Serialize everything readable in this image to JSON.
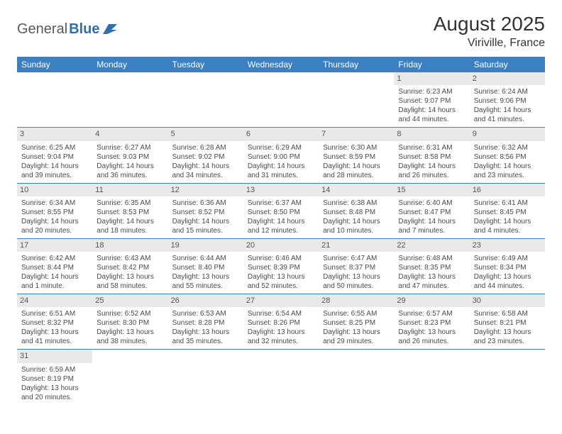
{
  "brand": {
    "part1": "General",
    "part2": "Blue"
  },
  "title": {
    "month": "August 2025",
    "location": "Viriville, France"
  },
  "colors": {
    "header_bg": "#3a80c3",
    "header_text": "#ffffff",
    "daynum_bg": "#e9e9e9",
    "border": "#3a80c3",
    "text": "#4a4a4a"
  },
  "weekdays": [
    "Sunday",
    "Monday",
    "Tuesday",
    "Wednesday",
    "Thursday",
    "Friday",
    "Saturday"
  ],
  "weeks": [
    [
      {
        "n": "",
        "sr": "",
        "ss": "",
        "dl": ""
      },
      {
        "n": "",
        "sr": "",
        "ss": "",
        "dl": ""
      },
      {
        "n": "",
        "sr": "",
        "ss": "",
        "dl": ""
      },
      {
        "n": "",
        "sr": "",
        "ss": "",
        "dl": ""
      },
      {
        "n": "",
        "sr": "",
        "ss": "",
        "dl": ""
      },
      {
        "n": "1",
        "sr": "Sunrise: 6:23 AM",
        "ss": "Sunset: 9:07 PM",
        "dl": "Daylight: 14 hours and 44 minutes."
      },
      {
        "n": "2",
        "sr": "Sunrise: 6:24 AM",
        "ss": "Sunset: 9:06 PM",
        "dl": "Daylight: 14 hours and 41 minutes."
      }
    ],
    [
      {
        "n": "3",
        "sr": "Sunrise: 6:25 AM",
        "ss": "Sunset: 9:04 PM",
        "dl": "Daylight: 14 hours and 39 minutes."
      },
      {
        "n": "4",
        "sr": "Sunrise: 6:27 AM",
        "ss": "Sunset: 9:03 PM",
        "dl": "Daylight: 14 hours and 36 minutes."
      },
      {
        "n": "5",
        "sr": "Sunrise: 6:28 AM",
        "ss": "Sunset: 9:02 PM",
        "dl": "Daylight: 14 hours and 34 minutes."
      },
      {
        "n": "6",
        "sr": "Sunrise: 6:29 AM",
        "ss": "Sunset: 9:00 PM",
        "dl": "Daylight: 14 hours and 31 minutes."
      },
      {
        "n": "7",
        "sr": "Sunrise: 6:30 AM",
        "ss": "Sunset: 8:59 PM",
        "dl": "Daylight: 14 hours and 28 minutes."
      },
      {
        "n": "8",
        "sr": "Sunrise: 6:31 AM",
        "ss": "Sunset: 8:58 PM",
        "dl": "Daylight: 14 hours and 26 minutes."
      },
      {
        "n": "9",
        "sr": "Sunrise: 6:32 AM",
        "ss": "Sunset: 8:56 PM",
        "dl": "Daylight: 14 hours and 23 minutes."
      }
    ],
    [
      {
        "n": "10",
        "sr": "Sunrise: 6:34 AM",
        "ss": "Sunset: 8:55 PM",
        "dl": "Daylight: 14 hours and 20 minutes."
      },
      {
        "n": "11",
        "sr": "Sunrise: 6:35 AM",
        "ss": "Sunset: 8:53 PM",
        "dl": "Daylight: 14 hours and 18 minutes."
      },
      {
        "n": "12",
        "sr": "Sunrise: 6:36 AM",
        "ss": "Sunset: 8:52 PM",
        "dl": "Daylight: 14 hours and 15 minutes."
      },
      {
        "n": "13",
        "sr": "Sunrise: 6:37 AM",
        "ss": "Sunset: 8:50 PM",
        "dl": "Daylight: 14 hours and 12 minutes."
      },
      {
        "n": "14",
        "sr": "Sunrise: 6:38 AM",
        "ss": "Sunset: 8:48 PM",
        "dl": "Daylight: 14 hours and 10 minutes."
      },
      {
        "n": "15",
        "sr": "Sunrise: 6:40 AM",
        "ss": "Sunset: 8:47 PM",
        "dl": "Daylight: 14 hours and 7 minutes."
      },
      {
        "n": "16",
        "sr": "Sunrise: 6:41 AM",
        "ss": "Sunset: 8:45 PM",
        "dl": "Daylight: 14 hours and 4 minutes."
      }
    ],
    [
      {
        "n": "17",
        "sr": "Sunrise: 6:42 AM",
        "ss": "Sunset: 8:44 PM",
        "dl": "Daylight: 14 hours and 1 minute."
      },
      {
        "n": "18",
        "sr": "Sunrise: 6:43 AM",
        "ss": "Sunset: 8:42 PM",
        "dl": "Daylight: 13 hours and 58 minutes."
      },
      {
        "n": "19",
        "sr": "Sunrise: 6:44 AM",
        "ss": "Sunset: 8:40 PM",
        "dl": "Daylight: 13 hours and 55 minutes."
      },
      {
        "n": "20",
        "sr": "Sunrise: 6:46 AM",
        "ss": "Sunset: 8:39 PM",
        "dl": "Daylight: 13 hours and 52 minutes."
      },
      {
        "n": "21",
        "sr": "Sunrise: 6:47 AM",
        "ss": "Sunset: 8:37 PM",
        "dl": "Daylight: 13 hours and 50 minutes."
      },
      {
        "n": "22",
        "sr": "Sunrise: 6:48 AM",
        "ss": "Sunset: 8:35 PM",
        "dl": "Daylight: 13 hours and 47 minutes."
      },
      {
        "n": "23",
        "sr": "Sunrise: 6:49 AM",
        "ss": "Sunset: 8:34 PM",
        "dl": "Daylight: 13 hours and 44 minutes."
      }
    ],
    [
      {
        "n": "24",
        "sr": "Sunrise: 6:51 AM",
        "ss": "Sunset: 8:32 PM",
        "dl": "Daylight: 13 hours and 41 minutes."
      },
      {
        "n": "25",
        "sr": "Sunrise: 6:52 AM",
        "ss": "Sunset: 8:30 PM",
        "dl": "Daylight: 13 hours and 38 minutes."
      },
      {
        "n": "26",
        "sr": "Sunrise: 6:53 AM",
        "ss": "Sunset: 8:28 PM",
        "dl": "Daylight: 13 hours and 35 minutes."
      },
      {
        "n": "27",
        "sr": "Sunrise: 6:54 AM",
        "ss": "Sunset: 8:26 PM",
        "dl": "Daylight: 13 hours and 32 minutes."
      },
      {
        "n": "28",
        "sr": "Sunrise: 6:55 AM",
        "ss": "Sunset: 8:25 PM",
        "dl": "Daylight: 13 hours and 29 minutes."
      },
      {
        "n": "29",
        "sr": "Sunrise: 6:57 AM",
        "ss": "Sunset: 8:23 PM",
        "dl": "Daylight: 13 hours and 26 minutes."
      },
      {
        "n": "30",
        "sr": "Sunrise: 6:58 AM",
        "ss": "Sunset: 8:21 PM",
        "dl": "Daylight: 13 hours and 23 minutes."
      }
    ],
    [
      {
        "n": "31",
        "sr": "Sunrise: 6:59 AM",
        "ss": "Sunset: 8:19 PM",
        "dl": "Daylight: 13 hours and 20 minutes."
      },
      {
        "n": "",
        "sr": "",
        "ss": "",
        "dl": ""
      },
      {
        "n": "",
        "sr": "",
        "ss": "",
        "dl": ""
      },
      {
        "n": "",
        "sr": "",
        "ss": "",
        "dl": ""
      },
      {
        "n": "",
        "sr": "",
        "ss": "",
        "dl": ""
      },
      {
        "n": "",
        "sr": "",
        "ss": "",
        "dl": ""
      },
      {
        "n": "",
        "sr": "",
        "ss": "",
        "dl": ""
      }
    ]
  ]
}
